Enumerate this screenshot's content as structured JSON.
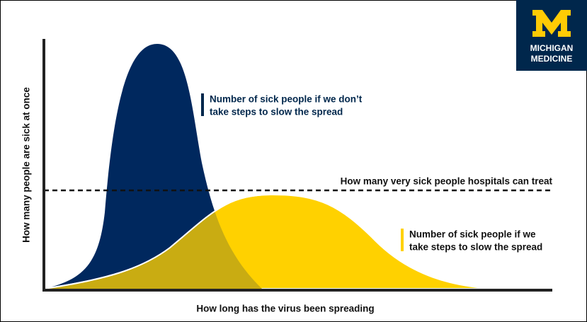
{
  "logo": {
    "lines": [
      "MICHIGAN",
      "MEDICINE"
    ]
  },
  "y_axis_label": "How many people are sick at once",
  "x_axis_label": "How long has the virus been spreading",
  "capacity_label": "How many very sick people hospitals can treat",
  "annotations": [
    {
      "lines": [
        "Number of sick people if we don’t",
        "take steps to slow the spread"
      ]
    },
    {
      "lines": [
        "Number of sick people if we",
        "take steps to slow the spread"
      ]
    }
  ]
}
